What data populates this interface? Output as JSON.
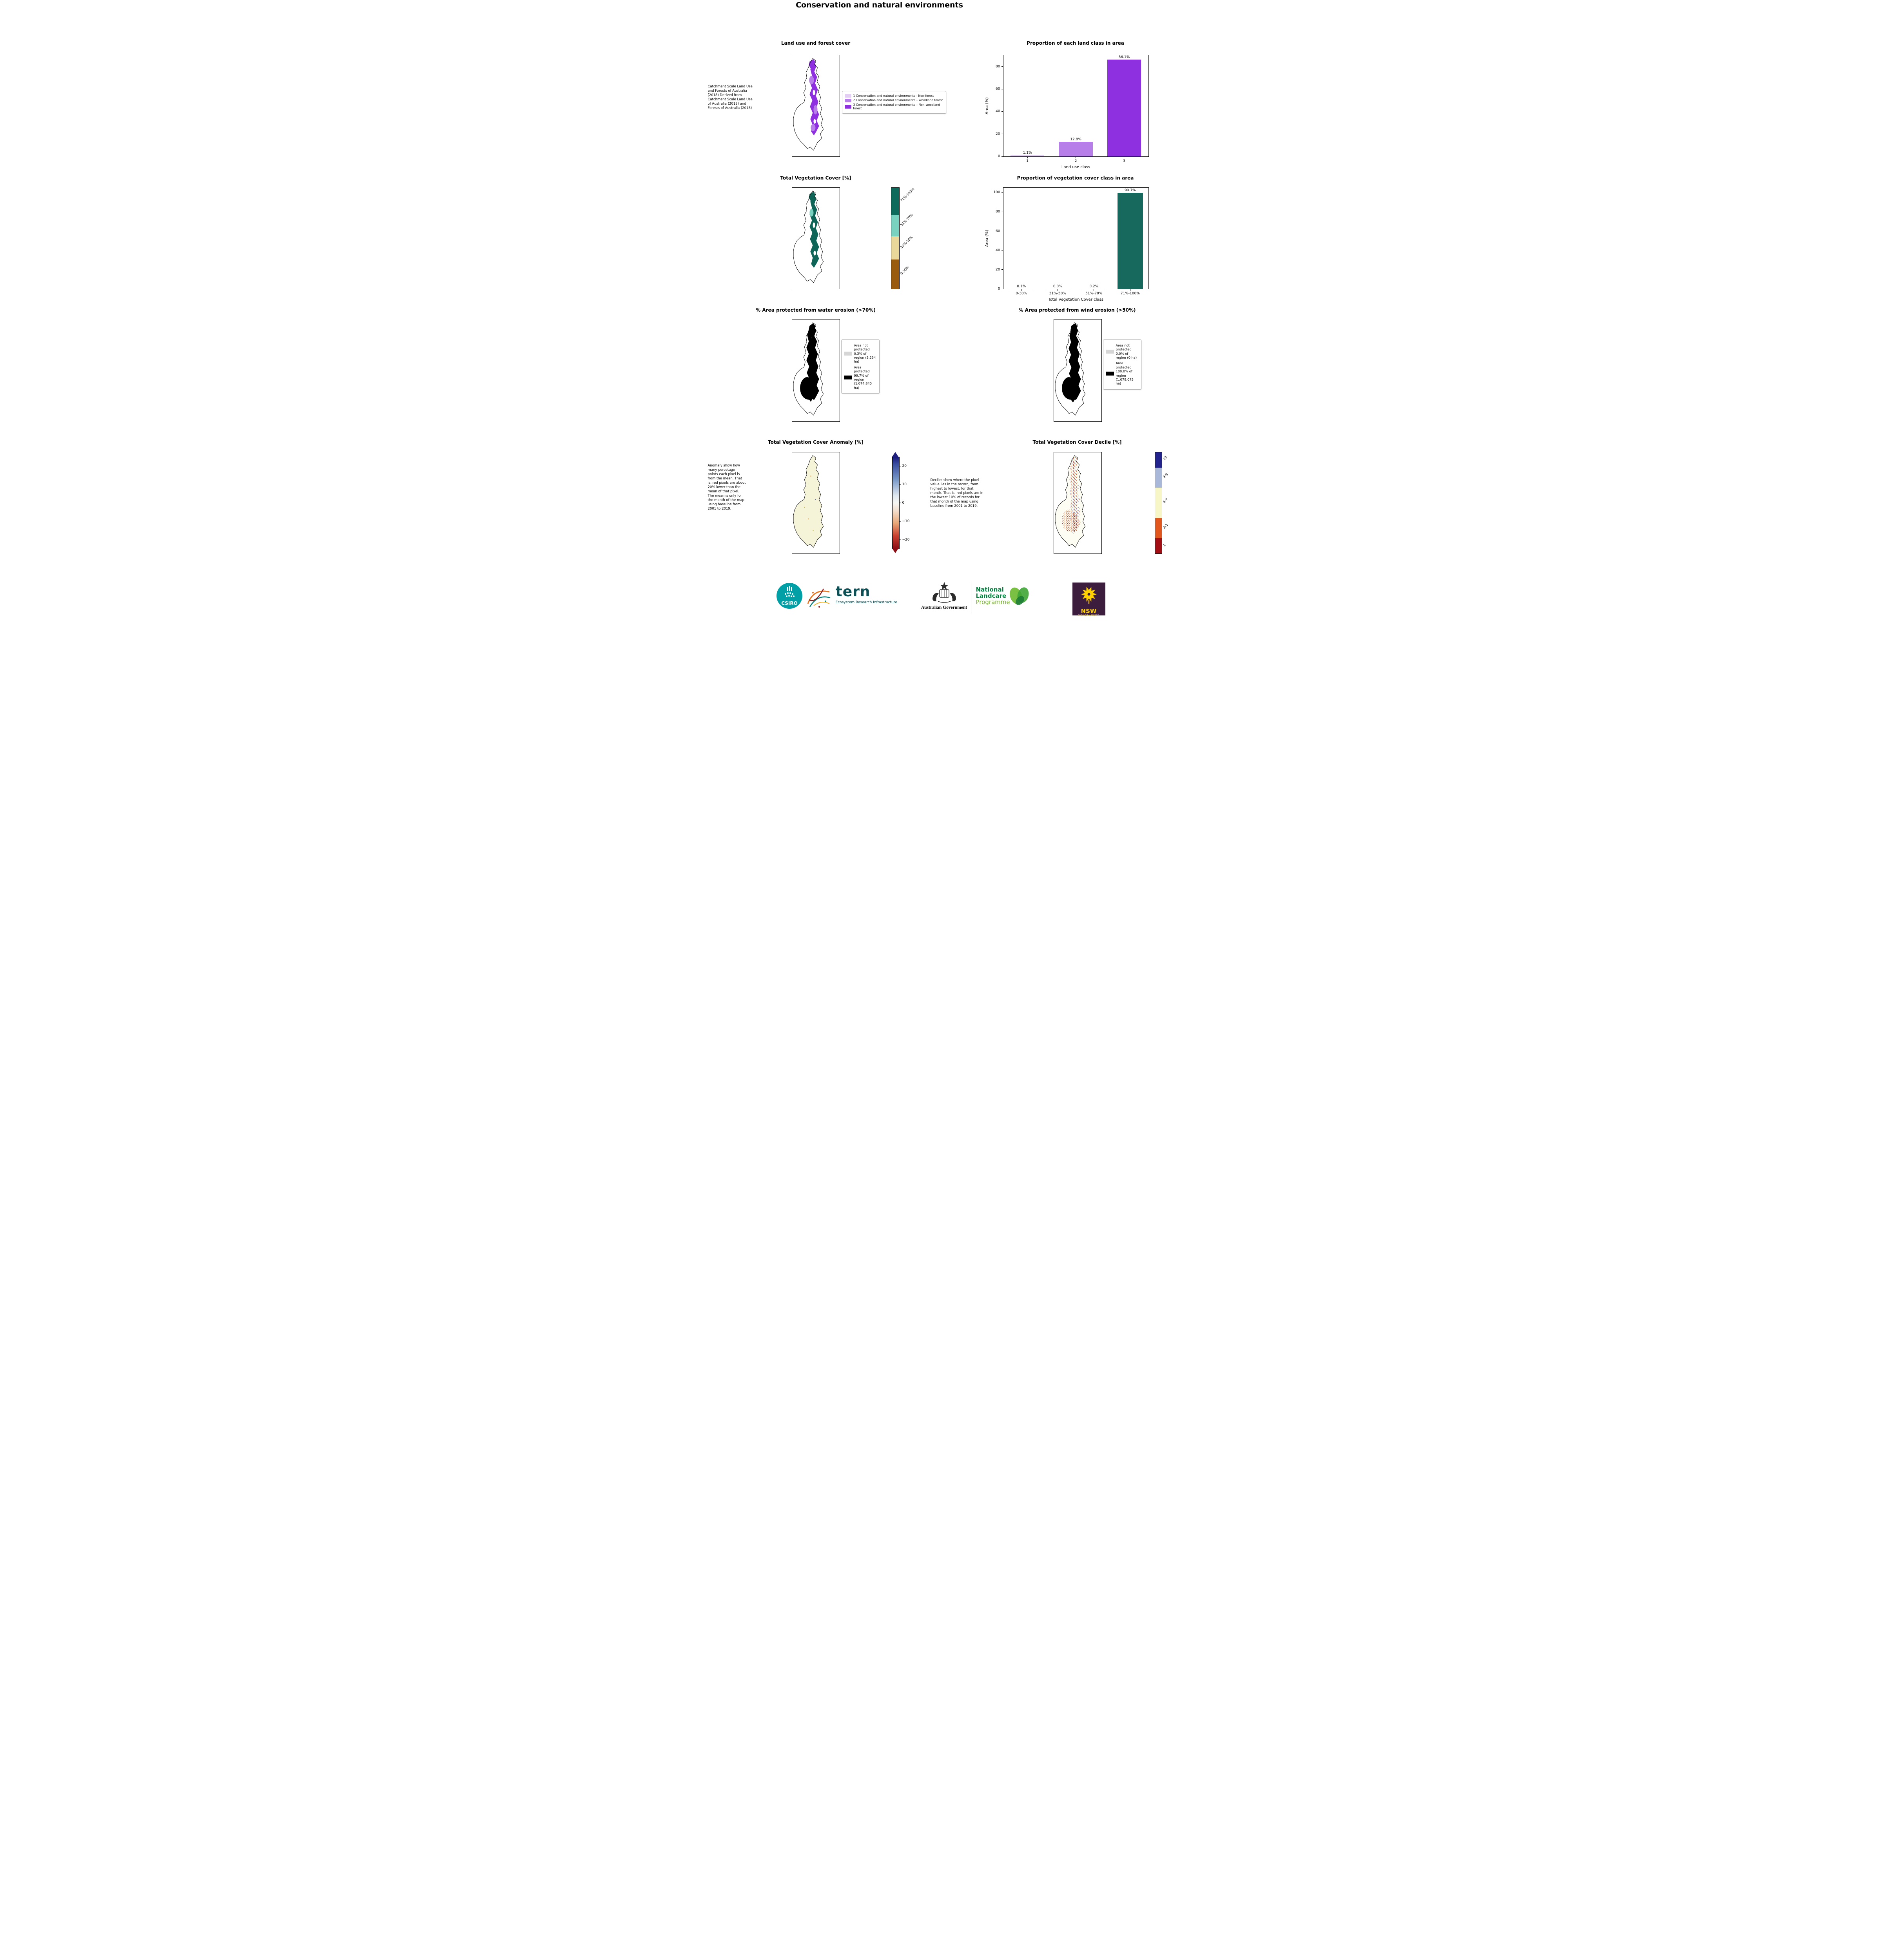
{
  "page": {
    "title": "Conservation and natural environments"
  },
  "landuse": {
    "map_title": "Land use and forest cover",
    "note": "Catchment Scale Land Use and Forests of Australia (2018) Derived from Catchment Scale Land Use of Australia (2018) and Forests of Australia (2018)",
    "legend": [
      {
        "color": "#e2cff3",
        "label": "1 Conservation and natural environments - Non-forest"
      },
      {
        "color": "#b77de9",
        "label": "2 Conservation and natural environments – Woodland forest"
      },
      {
        "color": "#8e2fe0",
        "label": "3 Conservation and natural environments – Non-woodland forest"
      }
    ]
  },
  "vegcover": {
    "map_title": "Total Vegetation Cover [%]",
    "colorbar": {
      "segments": [
        {
          "color": "#0c6b5b",
          "h": 27,
          "label": "71%-100%"
        },
        {
          "color": "#79d2bf",
          "h": 21,
          "label": "51%-70%"
        },
        {
          "color": "#ead79a",
          "h": 23,
          "label": "31%-50%"
        },
        {
          "color": "#995c0e",
          "h": 29,
          "label": "0-30%"
        }
      ]
    }
  },
  "water": {
    "title": "% Area protected from water erosion (>70%)",
    "legend": [
      {
        "color": "#d6d6d6",
        "label": "Area not protected 0.3% of region (3,234 ha)"
      },
      {
        "color": "#000000",
        "label": "Area protected 99.7% of region (1,074,840 ha)"
      }
    ]
  },
  "wind": {
    "title": "% Area protected from wind erosion (>50%)",
    "legend": [
      {
        "color": "#d6d6d6",
        "label": "Area not protected 0.0% of region (0 ha)"
      },
      {
        "color": "#000000",
        "label": "Area protected 100.0% of region (1,078,075 ha)"
      }
    ]
  },
  "anomaly": {
    "title": "Total Vegetation Cover Anomaly [%]",
    "note": "Anomaly show how many percetage points each pixel is from the mean. That is, red pixels are about 20% lower than the mean of that pixel. The mean is only for the month of the map using baseline from 2001 to 2019.",
    "colorbar": {
      "min": -25,
      "max": 25,
      "ticks": [
        20,
        10,
        0,
        -10,
        -20
      ]
    }
  },
  "decile": {
    "title": "Total Vegetation Cover Decile [%]",
    "note": "Deciles show where the pixel value lies in the record, from highest to lowest, for that month. That is, red pixels are in the lowest 10% of records for that month of the map using baseline from 2001 to 2019.",
    "colorbar": {
      "segments": [
        {
          "color": "#23238e",
          "h": 15,
          "label": "10"
        },
        {
          "color": "#a9b8d9",
          "h": 20,
          "label": "8-9"
        },
        {
          "color": "#f7f6c6",
          "h": 30,
          "label": "4-7"
        },
        {
          "color": "#e1571d",
          "h": 20,
          "label": "2-3"
        },
        {
          "color": "#a30e14",
          "h": 15,
          "label": "1"
        }
      ]
    }
  },
  "chart_data": [
    {
      "type": "bar",
      "title": "Proportion of each land class in area",
      "categories": [
        "1",
        "2",
        "3"
      ],
      "values": [
        1.1,
        12.8,
        86.1
      ],
      "value_labels": [
        "1.1%",
        "12.8%",
        "86.1%"
      ],
      "bar_colors": [
        "#e2cff3",
        "#b77de9",
        "#8e2fe0"
      ],
      "xlabel": "Land use class",
      "ylabel": "Area (%)",
      "ylim": [
        0,
        90
      ],
      "yticks": [
        0,
        20,
        40,
        60,
        80
      ],
      "legend_position": "none",
      "grid": false
    },
    {
      "type": "bar",
      "title": "Proportion of vegetation cover class in area",
      "categories": [
        "0-30%",
        "31%-50%",
        "51%-70%",
        "71%-100%"
      ],
      "values": [
        0.1,
        0.0,
        0.2,
        99.7
      ],
      "value_labels": [
        "0.1%",
        "0.0%",
        "0.2%",
        "99.7%"
      ],
      "bar_colors": [
        "#16695c",
        "#16695c",
        "#16695c",
        "#16695c"
      ],
      "xlabel": "Total Vegetation Cover class",
      "ylabel": "Area (%)",
      "ylim": [
        0,
        105
      ],
      "yticks": [
        0,
        20,
        40,
        60,
        80,
        100
      ],
      "legend_position": "none",
      "grid": false
    }
  ],
  "footer": {
    "csiro": "CSIRO",
    "tern": "tern",
    "tern_sub": "Ecosystem Research Infrastructure",
    "aus_gov": "Australian Government",
    "nlp_line1": "National",
    "nlp_line2": "Landcare",
    "nlp_line3": "Programme",
    "nsw": "NSW",
    "nsw_sub": "GOVERNMENT"
  }
}
